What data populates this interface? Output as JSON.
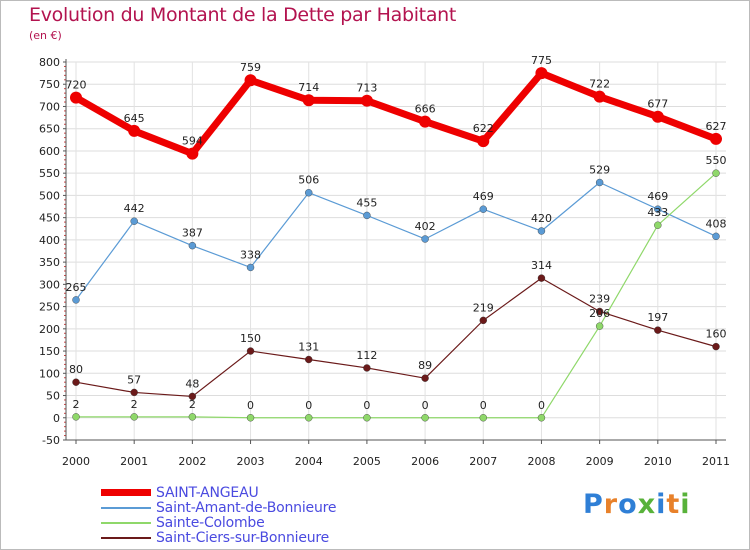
{
  "title": "Evolution du Montant de la Dette par Habitant",
  "subtitle": "(en €)",
  "logo": {
    "text": "Proxiti",
    "colors": [
      "#2f7fd6",
      "#e8812a",
      "#2f7fd6",
      "#58b23a",
      "#2f7fd6",
      "#e8812a",
      "#58b23a"
    ]
  },
  "chart_data": {
    "type": "line",
    "x": [
      "2000",
      "2001",
      "2002",
      "2003",
      "2004",
      "2005",
      "2006",
      "2007",
      "2008",
      "2009",
      "2010",
      "2011"
    ],
    "ylim": [
      -50,
      800
    ],
    "yticks": [
      -50,
      0,
      50,
      100,
      150,
      200,
      250,
      300,
      350,
      400,
      450,
      500,
      550,
      600,
      650,
      700,
      750,
      800
    ],
    "grid": true,
    "legend_position": "bottom-left",
    "series": [
      {
        "name": "SAINT-ANGEAU",
        "color": "#ee0000",
        "width": 7,
        "marker": 6,
        "values": [
          720,
          645,
          594,
          759,
          714,
          713,
          666,
          622,
          775,
          722,
          677,
          627
        ]
      },
      {
        "name": "Saint-Amant-de-Bonnieure",
        "color": "#5b9bd5",
        "width": 1.2,
        "marker": 3.5,
        "values": [
          265,
          442,
          387,
          338,
          506,
          455,
          402,
          469,
          420,
          529,
          469,
          408
        ]
      },
      {
        "name": "Sainte-Colombe",
        "color": "#8fd86a",
        "width": 1.2,
        "marker": 3.5,
        "values": [
          2,
          2,
          2,
          0,
          0,
          0,
          0,
          0,
          0,
          206,
          433,
          550
        ]
      },
      {
        "name": "Saint-Ciers-sur-Bonnieure",
        "color": "#6b1a1a",
        "width": 1.2,
        "marker": 3.5,
        "values": [
          80,
          57,
          48,
          150,
          131,
          112,
          89,
          219,
          314,
          239,
          197,
          160
        ]
      }
    ]
  }
}
